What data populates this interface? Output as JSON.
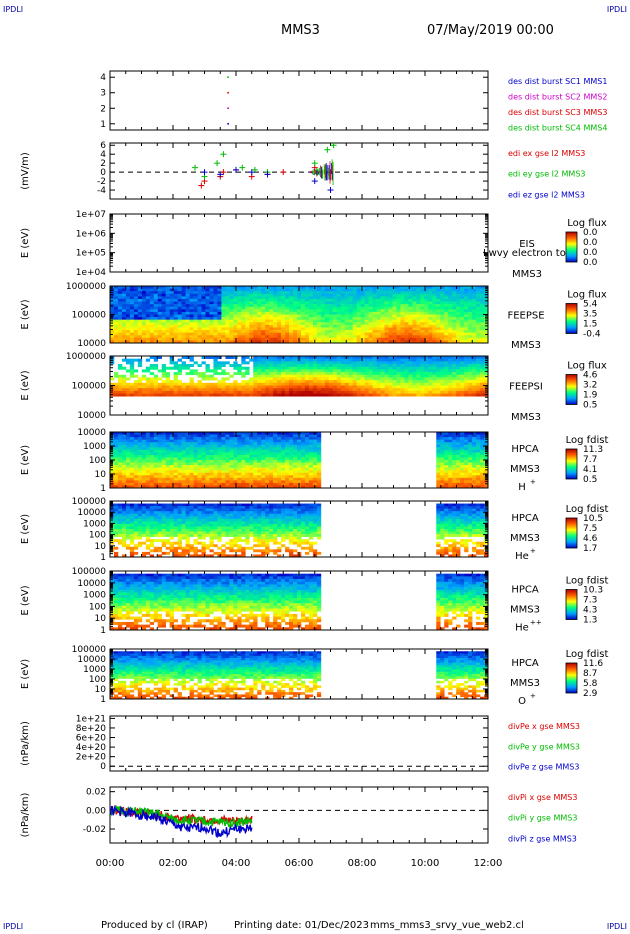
{
  "header": {
    "corner_tl": "IPDLI",
    "corner_tr": "IPDLI",
    "corner_bl": "IPDLI",
    "corner_br": "IPDLI",
    "spacecraft": "MMS3",
    "date": "07/May/2019 00:00"
  },
  "footer": {
    "produced_by": "Produced by cl (IRAP)",
    "printing_date": "Printing date: 01/Dec/2023",
    "script_name": "mms_mms3_srvy_vue_web2.cl"
  },
  "colors": {
    "mms1": "#0000cc",
    "mms2": "#cc00cc",
    "mms3": "#dd0000",
    "mms4": "#00bb00",
    "x": "#dd0000",
    "y": "#00bb00",
    "z": "#0000cc"
  },
  "chart_data": [
    {
      "type": "scatter",
      "panel": "des-dist-burst",
      "ylabel": "",
      "ylim": [
        0.6,
        4.4
      ],
      "yticks": [
        "1",
        "2",
        "3",
        "4"
      ],
      "xlim": [
        0,
        12
      ],
      "legend": [
        "des dist burst SC1 MMS1",
        "des dist burst SC2 MMS2",
        "des dist burst SC3 MMS3",
        "des dist burst SC4 MMS4"
      ],
      "series": [
        {
          "name": "des dist burst SC1 MMS1",
          "x": [
            3.75
          ],
          "y": [
            1
          ]
        },
        {
          "name": "des dist burst SC2 MMS2",
          "x": [
            3.75
          ],
          "y": [
            2
          ]
        },
        {
          "name": "des dist burst SC3 MMS3",
          "x": [
            3.75
          ],
          "y": [
            3
          ]
        },
        {
          "name": "des dist burst SC4 MMS4",
          "x": [
            3.75
          ],
          "y": [
            4
          ]
        }
      ]
    },
    {
      "type": "line",
      "panel": "edi-e-field",
      "ylabel": "(mV/m)",
      "ylim": [
        -6,
        6.5
      ],
      "yticks": [
        "-4",
        "-2",
        "0",
        "2",
        "4",
        "6"
      ],
      "xlim": [
        0,
        12
      ],
      "legend": [
        "edi ex gse l2 MMS3",
        "edi ey gse l2 MMS3",
        "edi ez gse l2 MMS3"
      ],
      "series": [
        {
          "name": "edi ex gse l2 MMS3",
          "x": [
            2.9,
            3.0,
            3.5,
            3.6,
            4.0,
            4.5,
            5.0,
            5.5,
            6.5,
            7.0
          ],
          "y": [
            -3,
            -2,
            -1,
            0,
            0.5,
            -1,
            -0.5,
            0,
            1,
            0
          ]
        },
        {
          "name": "edi ey gse l2 MMS3",
          "x": [
            2.7,
            3.0,
            3.4,
            3.6,
            4.2,
            4.6,
            5.0,
            6.5,
            6.9,
            7.1
          ],
          "y": [
            1,
            -1,
            2,
            4,
            1,
            0.5,
            0,
            2,
            5,
            6
          ]
        },
        {
          "name": "edi ez gse l2 MMS3",
          "x": [
            3.0,
            3.5,
            4.0,
            4.5,
            5.0,
            6.5,
            7.0
          ],
          "y": [
            0,
            -0.5,
            0.5,
            0,
            -0.5,
            -2,
            -4
          ]
        }
      ]
    },
    {
      "type": "heatmap",
      "panel": "EIS",
      "ylabel": "E (eV)",
      "yscale": "log",
      "ylim": [
        10000,
        10000000
      ],
      "yticks": [
        "1e+04",
        "1e+05",
        "1e+06",
        "1e+07"
      ],
      "labels": [
        "EIS",
        "MMS3"
      ],
      "overlay_text": "Lwvy electron to",
      "colorbar": {
        "title": "Log flux",
        "ticks": [
          "0.0",
          "0.0",
          "0.0",
          "0.0"
        ]
      }
    },
    {
      "type": "heatmap",
      "panel": "FEEPSE",
      "ylabel": "E (eV)",
      "yscale": "log",
      "ylim": [
        10000,
        1000000
      ],
      "yticks": [
        "10000",
        "100000",
        "1000000"
      ],
      "labels": [
        "FEEPSE",
        "MMS3"
      ],
      "colorbar": {
        "title": "Log flux",
        "ticks": [
          "5.4",
          "3.5",
          "1.5",
          "-0.4"
        ]
      }
    },
    {
      "type": "heatmap",
      "panel": "FEEPSI",
      "ylabel": "E (eV)",
      "yscale": "log",
      "ylim": [
        10000,
        1000000
      ],
      "yticks": [
        "10000",
        "100000",
        "1000000"
      ],
      "labels": [
        "FEEPSI",
        "MMS3"
      ],
      "colorbar": {
        "title": "Log flux",
        "ticks": [
          "4.6",
          "3.2",
          "1.9",
          "0.5"
        ]
      }
    },
    {
      "type": "heatmap",
      "panel": "HPCA-H",
      "ylabel": "E (eV)",
      "yscale": "log",
      "ylim": [
        1,
        10000
      ],
      "yticks": [
        "1",
        "10",
        "100",
        "1000",
        "10000"
      ],
      "labels": [
        "HPCA",
        "MMS3",
        "H",
        "+"
      ],
      "data_gap": [
        6.75,
        10.3
      ],
      "colorbar": {
        "title": "Log fdist",
        "ticks": [
          "11.3",
          "7.7",
          "4.1",
          "0.5"
        ]
      }
    },
    {
      "type": "heatmap",
      "panel": "HPCA-He+",
      "ylabel": "E (eV)",
      "yscale": "log",
      "ylim": [
        1,
        100000
      ],
      "yticks": [
        "1",
        "10",
        "100",
        "1000",
        "10000",
        "100000"
      ],
      "labels": [
        "HPCA",
        "MMS3",
        "He",
        "+"
      ],
      "data_gap": [
        6.75,
        10.3
      ],
      "colorbar": {
        "title": "Log fdist",
        "ticks": [
          "10.5",
          "7.5",
          "4.6",
          "1.7"
        ]
      }
    },
    {
      "type": "heatmap",
      "panel": "HPCA-He++",
      "ylabel": "E (eV)",
      "yscale": "log",
      "ylim": [
        1,
        100000
      ],
      "yticks": [
        "1",
        "10",
        "100",
        "1000",
        "10000",
        "100000"
      ],
      "labels": [
        "HPCA",
        "MMS3",
        "He",
        "++"
      ],
      "data_gap": [
        6.75,
        10.3
      ],
      "colorbar": {
        "title": "Log fdist",
        "ticks": [
          "10.3",
          "7.3",
          "4.3",
          "1.3"
        ]
      }
    },
    {
      "type": "heatmap",
      "panel": "HPCA-O+",
      "ylabel": "E (eV)",
      "yscale": "log",
      "ylim": [
        1,
        100000
      ],
      "yticks": [
        "1",
        "10",
        "100",
        "1000",
        "10000",
        "100000"
      ],
      "labels": [
        "HPCA",
        "MMS3",
        "O",
        "+"
      ],
      "data_gap": [
        6.75,
        10.3
      ],
      "colorbar": {
        "title": "Log fdist",
        "ticks": [
          "11.6",
          "8.7",
          "5.8",
          "2.9"
        ]
      }
    },
    {
      "type": "line",
      "panel": "divPe",
      "ylabel": "(nPa/km)",
      "ylim": [
        -1e+20,
        1.05e+21
      ],
      "yticks": [
        "0",
        "2e+20",
        "4e+20",
        "6e+20",
        "8e+20",
        "1e+21"
      ],
      "legend": [
        "divPe x gse MMS3",
        "divPe y gse MMS3",
        "divPe z gse MMS3"
      ],
      "series": []
    },
    {
      "type": "line",
      "panel": "divPi",
      "ylabel": "(nPa/km)",
      "ylim": [
        -0.035,
        0.025
      ],
      "yticks": [
        "-0.02",
        "0.00",
        "0.02"
      ],
      "legend": [
        "divPi x gse MMS3",
        "divPi y gse MMS3",
        "divPi z gse MMS3"
      ],
      "series": [
        {
          "name": "divPi x gse MMS3",
          "x": [
            0,
            1,
            1.5,
            2,
            3,
            4,
            4.5
          ],
          "y": [
            0,
            -0.003,
            -0.005,
            -0.008,
            -0.01,
            -0.012,
            -0.01
          ]
        },
        {
          "name": "divPi y gse MMS3",
          "x": [
            0,
            1,
            1.5,
            2,
            3,
            4,
            4.5
          ],
          "y": [
            0,
            -0.002,
            -0.004,
            -0.01,
            -0.012,
            -0.013,
            -0.011
          ]
        },
        {
          "name": "divPi z gse MMS3",
          "x": [
            0,
            1,
            1.5,
            2,
            2.5,
            3,
            3.5,
            4,
            4.5
          ],
          "y": [
            0,
            -0.005,
            -0.008,
            -0.015,
            -0.02,
            -0.018,
            -0.025,
            -0.02,
            -0.02
          ]
        }
      ]
    }
  ],
  "x_axis": {
    "ticks": [
      "00:00",
      "02:00",
      "04:00",
      "06:00",
      "08:00",
      "10:00",
      "12:00"
    ]
  }
}
